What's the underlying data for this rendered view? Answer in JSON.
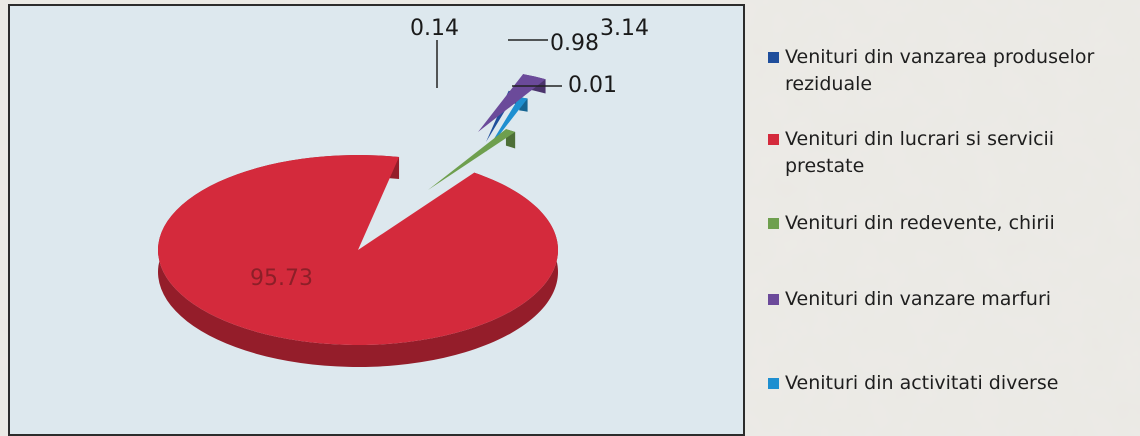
{
  "chart_data": {
    "type": "pie",
    "title": "",
    "categories": [
      "Venituri din vanzarea produselor reziduale",
      "Venituri din lucrari si servicii prestate",
      "Venituri din redevente, chirii",
      "Venituri din vanzare marfuri",
      "Venituri din activitati diverse"
    ],
    "values": [
      0.01,
      95.73,
      0.14,
      3.14,
      0.98
    ],
    "value_labels": [
      "0.01",
      "95.73",
      "0.14",
      "3.14",
      "0.98"
    ],
    "colors": [
      "#1f4e9c",
      "#d42a3c",
      "#6e9f4e",
      "#6b4a9a",
      "#1e8fd0"
    ],
    "legend_position": "right"
  },
  "legend": {
    "items": [
      {
        "label": "Venituri din vanzarea produselor reziduale",
        "color": "#1f4e9c"
      },
      {
        "label": "Venituri din lucrari si servicii prestate",
        "color": "#d42a3c"
      },
      {
        "label": "Venituri din redevente, chirii",
        "color": "#6e9f4e"
      },
      {
        "label": "Venituri din vanzare marfuri",
        "color": "#6b4a9a"
      },
      {
        "label": "Venituri din activitati diverse",
        "color": "#1e8fd0"
      }
    ]
  }
}
